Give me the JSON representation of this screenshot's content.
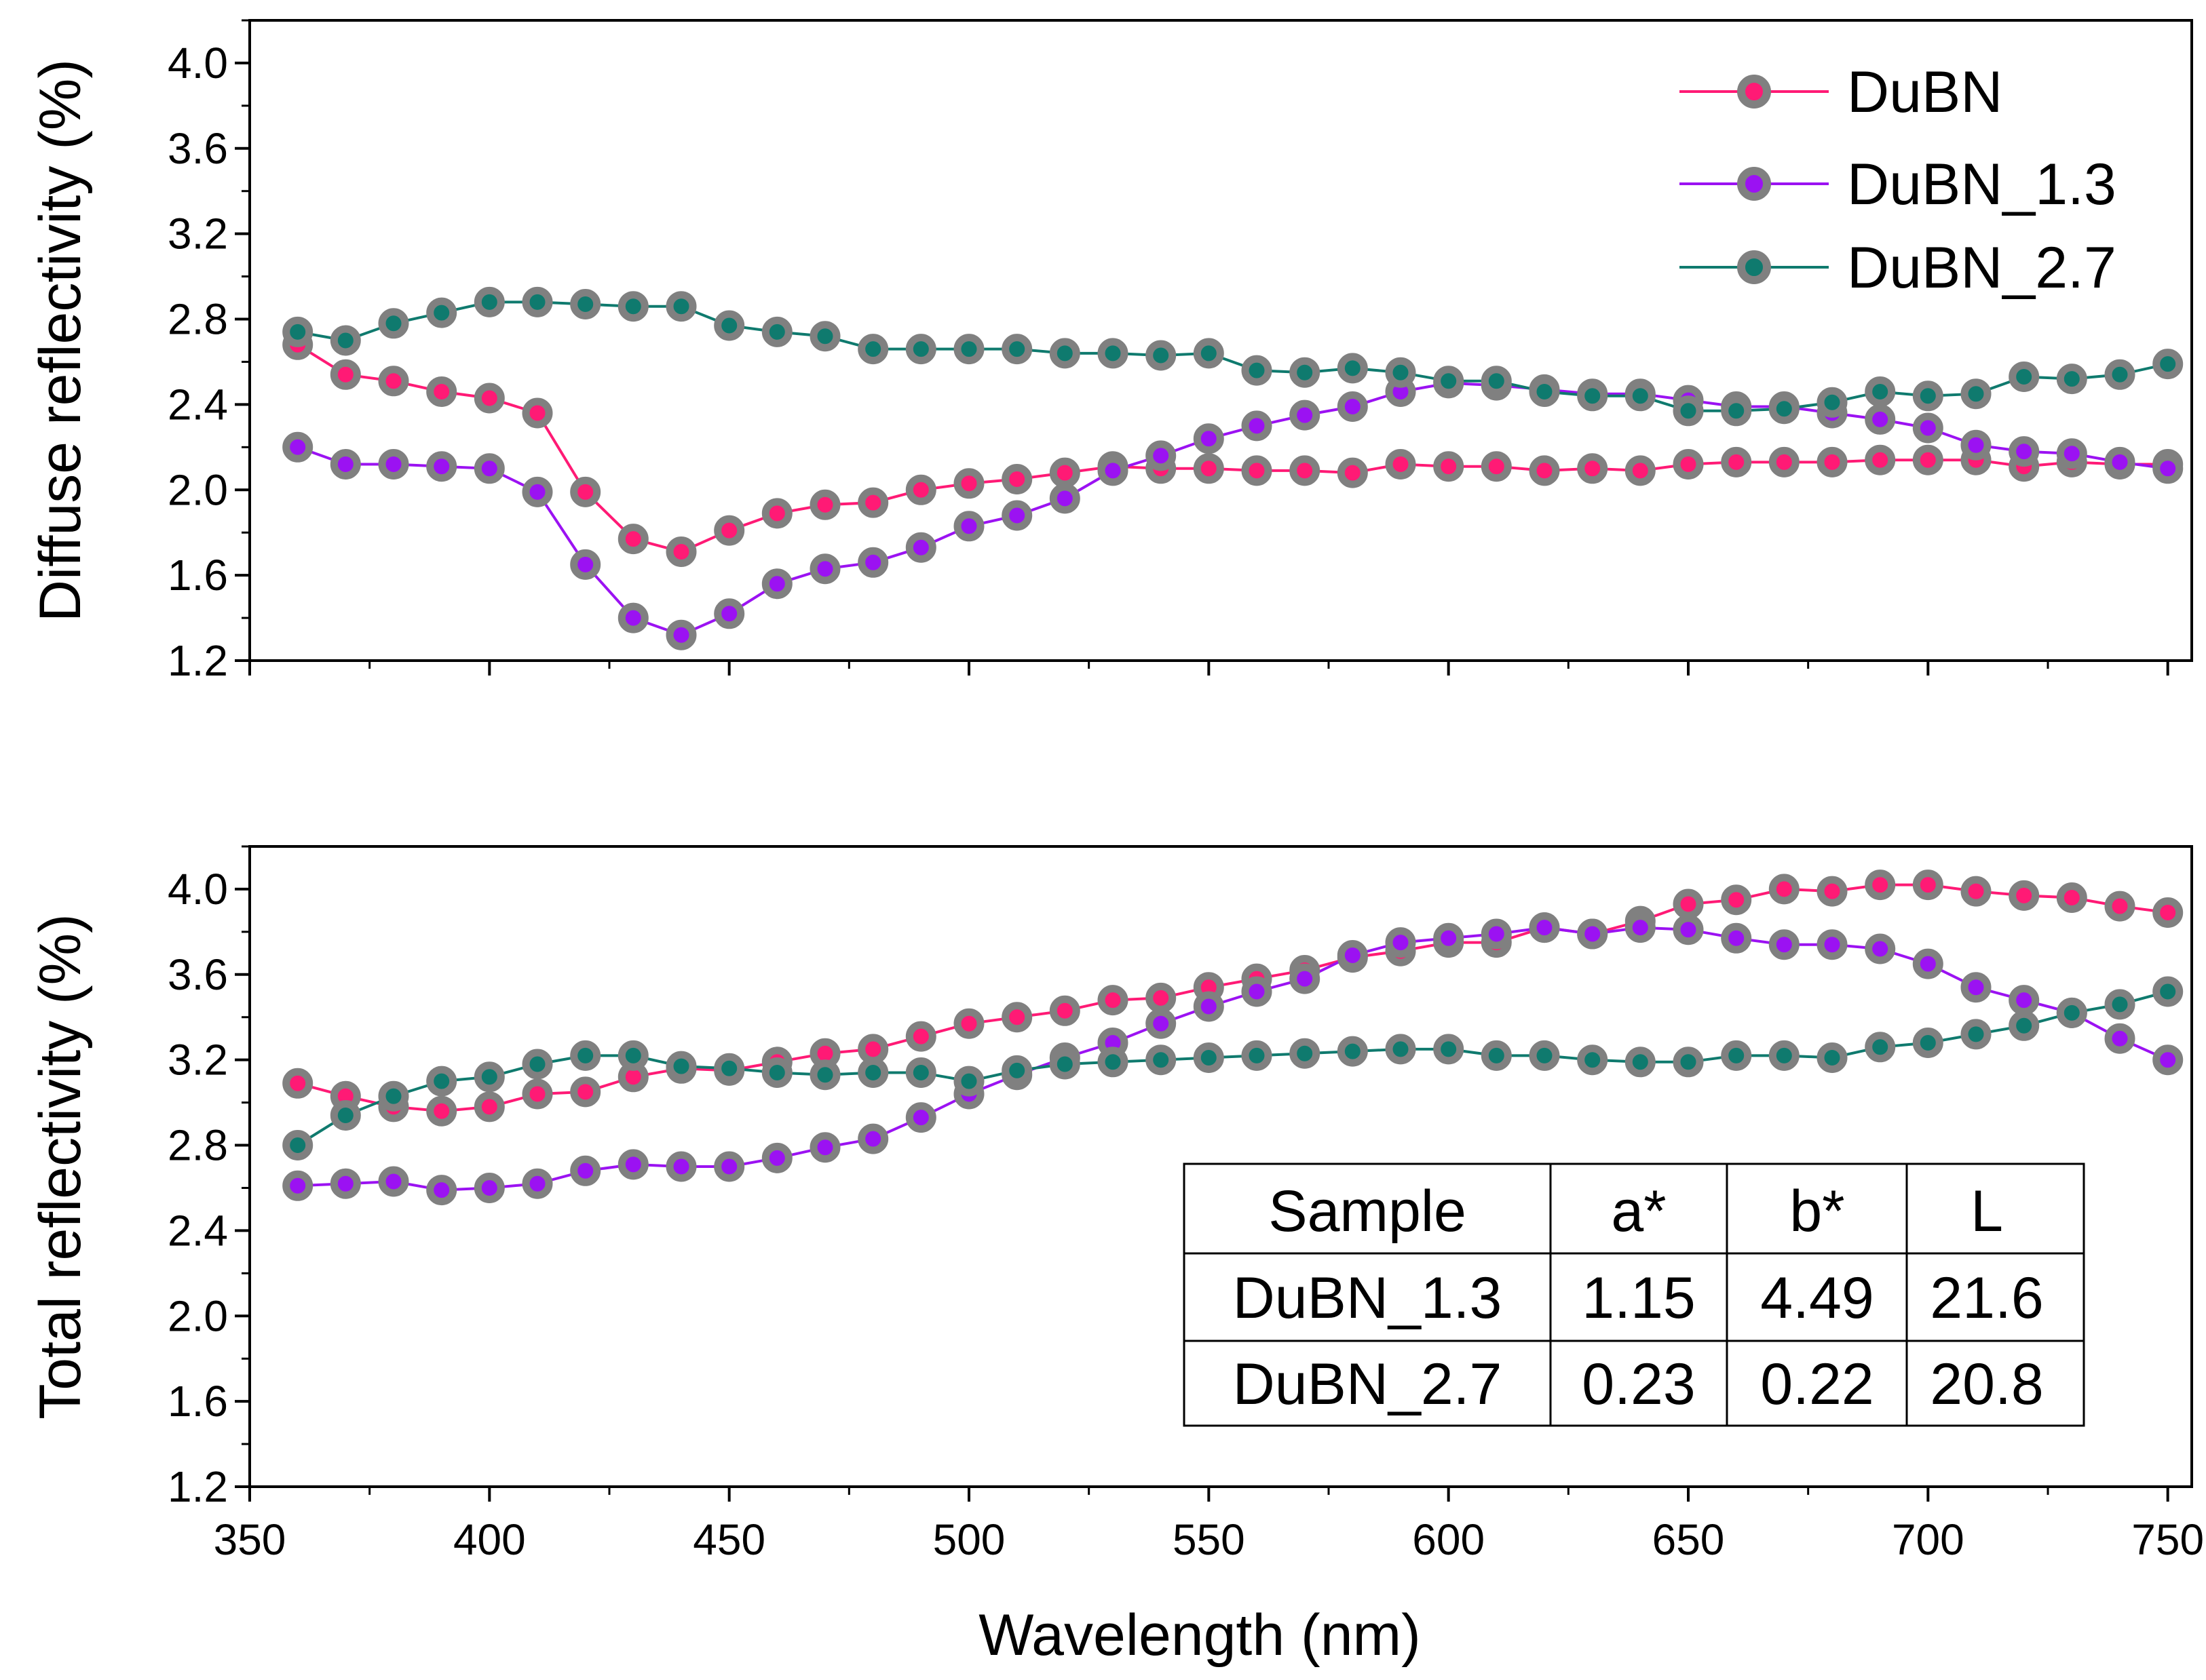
{
  "chart_data": [
    {
      "type": "line",
      "panel": "top",
      "title": "",
      "xlabel": "",
      "ylabel": "Diffuse reflectivity (%)",
      "xlim": [
        350,
        755
      ],
      "ylim": [
        1.2,
        4.2
      ],
      "yticks": [
        1.2,
        1.6,
        2.0,
        2.4,
        2.8,
        3.2,
        3.6,
        4.0
      ],
      "ytick_labels": [
        "1.2",
        "1.6",
        "2.0",
        "2.4",
        "2.8",
        "3.2",
        "3.6",
        "4.0"
      ],
      "legend": {
        "position": "top-right",
        "entries": [
          "DuBN",
          "DuBN_1.3",
          "DuBN_2.7"
        ]
      },
      "x": [
        360,
        370,
        380,
        390,
        400,
        410,
        420,
        430,
        440,
        450,
        460,
        470,
        480,
        490,
        500,
        510,
        520,
        530,
        540,
        550,
        560,
        570,
        580,
        590,
        600,
        610,
        620,
        630,
        640,
        650,
        660,
        670,
        680,
        690,
        700,
        710,
        720,
        730,
        740,
        750
      ],
      "series": [
        {
          "name": "DuBN",
          "color": "#ff1a75",
          "values": [
            2.68,
            2.54,
            2.51,
            2.46,
            2.43,
            2.36,
            1.99,
            1.77,
            1.71,
            1.81,
            1.89,
            1.93,
            1.94,
            2.0,
            2.03,
            2.05,
            2.08,
            2.11,
            2.1,
            2.1,
            2.09,
            2.09,
            2.08,
            2.12,
            2.11,
            2.11,
            2.09,
            2.1,
            2.09,
            2.12,
            2.13,
            2.13,
            2.13,
            2.14,
            2.14,
            2.14,
            2.11,
            2.13,
            2.12,
            2.12
          ]
        },
        {
          "name": "DuBN_1.3",
          "color": "#9b12f2",
          "values": [
            2.2,
            2.12,
            2.12,
            2.11,
            2.1,
            1.99,
            1.65,
            1.4,
            1.32,
            1.42,
            1.56,
            1.63,
            1.66,
            1.73,
            1.83,
            1.88,
            1.96,
            2.09,
            2.16,
            2.24,
            2.3,
            2.35,
            2.39,
            2.46,
            2.5,
            2.49,
            2.47,
            2.45,
            2.45,
            2.42,
            2.39,
            2.39,
            2.36,
            2.33,
            2.29,
            2.21,
            2.18,
            2.17,
            2.13,
            2.1
          ]
        },
        {
          "name": "DuBN_2.7",
          "color": "#0f7a6e",
          "values": [
            2.74,
            2.7,
            2.78,
            2.83,
            2.88,
            2.88,
            2.87,
            2.86,
            2.86,
            2.77,
            2.74,
            2.72,
            2.66,
            2.66,
            2.66,
            2.66,
            2.64,
            2.64,
            2.63,
            2.64,
            2.56,
            2.55,
            2.57,
            2.55,
            2.51,
            2.51,
            2.46,
            2.44,
            2.44,
            2.37,
            2.37,
            2.38,
            2.41,
            2.46,
            2.44,
            2.45,
            2.53,
            2.52,
            2.54,
            2.59
          ]
        }
      ]
    },
    {
      "type": "line",
      "panel": "bottom",
      "title": "",
      "xlabel": "Wavelength (nm)",
      "ylabel": "Total reflectivity (%)",
      "xlim": [
        350,
        755
      ],
      "ylim": [
        1.2,
        4.2
      ],
      "xticks": [
        350,
        400,
        450,
        500,
        550,
        600,
        650,
        700,
        750
      ],
      "xtick_labels": [
        "350",
        "400",
        "450",
        "500",
        "550",
        "600",
        "650",
        "700",
        "750"
      ],
      "yticks": [
        1.2,
        1.6,
        2.0,
        2.4,
        2.8,
        3.2,
        3.6,
        4.0
      ],
      "ytick_labels": [
        "1.2",
        "1.6",
        "2.0",
        "2.4",
        "2.8",
        "3.2",
        "3.6",
        "4.0"
      ],
      "x": [
        360,
        370,
        380,
        390,
        400,
        410,
        420,
        430,
        440,
        450,
        460,
        470,
        480,
        490,
        500,
        510,
        520,
        530,
        540,
        550,
        560,
        570,
        580,
        590,
        600,
        610,
        620,
        630,
        640,
        650,
        660,
        670,
        680,
        690,
        700,
        710,
        720,
        730,
        740,
        750
      ],
      "series": [
        {
          "name": "DuBN",
          "color": "#ff1a75",
          "values": [
            3.09,
            3.03,
            2.98,
            2.96,
            2.98,
            3.04,
            3.05,
            3.12,
            3.16,
            3.15,
            3.19,
            3.23,
            3.25,
            3.31,
            3.37,
            3.4,
            3.43,
            3.48,
            3.49,
            3.54,
            3.58,
            3.62,
            3.68,
            3.71,
            3.75,
            3.75,
            3.82,
            3.79,
            3.85,
            3.93,
            3.95,
            4.0,
            3.99,
            4.02,
            4.02,
            3.99,
            3.97,
            3.96,
            3.92,
            3.89
          ]
        },
        {
          "name": "DuBN_1.3",
          "color": "#9b12f2",
          "values": [
            2.61,
            2.62,
            2.63,
            2.59,
            2.6,
            2.62,
            2.68,
            2.71,
            2.7,
            2.7,
            2.74,
            2.79,
            2.83,
            2.93,
            3.04,
            3.13,
            3.21,
            3.28,
            3.37,
            3.45,
            3.52,
            3.58,
            3.69,
            3.75,
            3.77,
            3.79,
            3.82,
            3.79,
            3.82,
            3.81,
            3.77,
            3.74,
            3.74,
            3.72,
            3.65,
            3.54,
            3.48,
            3.42,
            3.3,
            3.2
          ]
        },
        {
          "name": "DuBN_2.7",
          "color": "#0f7a6e",
          "values": [
            2.8,
            2.94,
            3.03,
            3.1,
            3.12,
            3.18,
            3.22,
            3.22,
            3.17,
            3.16,
            3.14,
            3.13,
            3.14,
            3.14,
            3.1,
            3.15,
            3.18,
            3.19,
            3.2,
            3.21,
            3.22,
            3.23,
            3.24,
            3.25,
            3.25,
            3.22,
            3.22,
            3.2,
            3.19,
            3.19,
            3.22,
            3.22,
            3.21,
            3.26,
            3.28,
            3.32,
            3.36,
            3.42,
            3.46,
            3.52
          ]
        }
      ],
      "inset_table": {
        "headers": [
          "Sample",
          "a*",
          "b*",
          "L"
        ],
        "rows": [
          [
            "DuBN_1.3",
            "1.15",
            "4.49",
            "21.6"
          ],
          [
            "DuBN_2.7",
            "0.23",
            "0.22",
            "20.8"
          ]
        ]
      }
    }
  ]
}
